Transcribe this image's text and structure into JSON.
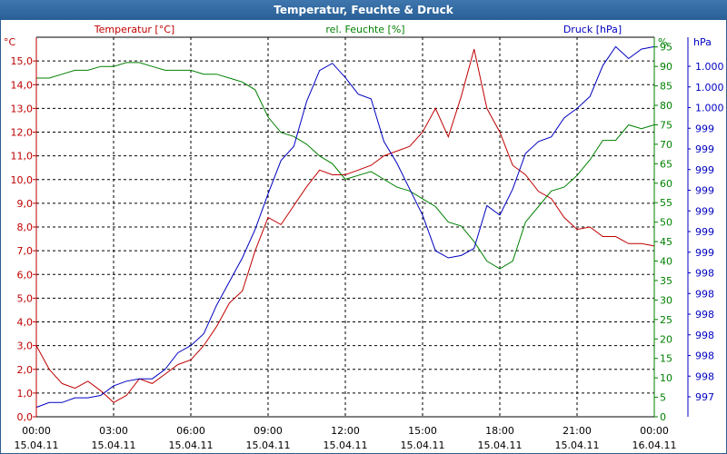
{
  "window": {
    "title": "Temperatur, Feuchte & Druck"
  },
  "chart_data": {
    "type": "line",
    "title": "Temperatur, Feuchte & Druck",
    "colors": {
      "temperature": "#c00000",
      "humidity": "#008000",
      "pressure": "#0000c0",
      "grid": "#000000"
    },
    "x_ticks": [
      {
        "time": "00:00",
        "date": "15.04.11"
      },
      {
        "time": "03:00",
        "date": "15.04.11"
      },
      {
        "time": "06:00",
        "date": "15.04.11"
      },
      {
        "time": "09:00",
        "date": "15.04.11"
      },
      {
        "time": "12:00",
        "date": "15.04.11"
      },
      {
        "time": "15:00",
        "date": "15.04.11"
      },
      {
        "time": "18:00",
        "date": "15.04.11"
      },
      {
        "time": "21:00",
        "date": "15.04.11"
      },
      {
        "time": "00:00",
        "date": "16.04.11"
      }
    ],
    "xlim": [
      0,
      24
    ],
    "axes": {
      "temperature": {
        "label": "Temperatur [°C]",
        "unit": "°C",
        "ylim": [
          0,
          16
        ],
        "ticks": [
          "0,0",
          "1,0",
          "2,0",
          "3,0",
          "4,0",
          "5,0",
          "6,0",
          "7,0",
          "8,0",
          "9,0",
          "10,0",
          "11,0",
          "12,0",
          "13,0",
          "14,0",
          "15,0"
        ]
      },
      "humidity": {
        "label": "rel. Feuchte [%]",
        "unit": "%",
        "ylim": [
          0,
          97.5
        ],
        "ticks": [
          "0",
          "5",
          "10",
          "15",
          "20",
          "25",
          "30",
          "35",
          "40",
          "45",
          "50",
          "55",
          "60",
          "65",
          "70",
          "75",
          "80",
          "85",
          "90",
          "95"
        ]
      },
      "pressure": {
        "label": "Druck [hPa]",
        "unit": "hPa",
        "ticks": [
          "997",
          "998",
          "998",
          "998",
          "998",
          "998",
          "998",
          "999",
          "999",
          "999",
          "999",
          "999",
          "999",
          "999",
          "1.000",
          "1.000",
          "1.000"
        ]
      }
    },
    "series": [
      {
        "name": "Temperatur",
        "key": "temperature",
        "x": [
          0,
          0.5,
          1,
          1.5,
          2,
          2.5,
          3,
          3.5,
          4,
          4.5,
          5,
          5.5,
          6,
          6.5,
          7,
          7.5,
          8,
          8.5,
          9,
          9.5,
          10,
          10.5,
          11,
          11.5,
          12,
          12.5,
          13,
          13.5,
          14,
          14.5,
          15,
          15.5,
          16,
          16.5,
          17,
          17.5,
          18,
          18.5,
          19,
          19.5,
          20,
          20.5,
          21,
          21.5,
          22,
          22.5,
          23,
          23.5,
          24
        ],
        "values": [
          3.0,
          2.0,
          1.4,
          1.2,
          1.5,
          1.1,
          0.6,
          0.9,
          1.6,
          1.4,
          1.8,
          2.2,
          2.4,
          3.0,
          3.8,
          4.8,
          5.3,
          7.0,
          8.4,
          8.1,
          8.9,
          9.7,
          10.4,
          10.2,
          10.2,
          10.4,
          10.6,
          11.0,
          11.2,
          11.4,
          12.0,
          13.0,
          11.8,
          13.5,
          15.5,
          13.0,
          12.0,
          10.6,
          10.2,
          9.5,
          9.2,
          8.4,
          7.9,
          8.0,
          7.6,
          7.6,
          7.3,
          7.3,
          7.2
        ]
      },
      {
        "name": "rel. Feuchte",
        "key": "humidity",
        "x": [
          0,
          0.5,
          1,
          1.5,
          2,
          2.5,
          3,
          3.5,
          4,
          4.5,
          5,
          5.5,
          6,
          6.5,
          7,
          7.5,
          8,
          8.5,
          9,
          9.5,
          10,
          10.5,
          11,
          11.5,
          12,
          12.5,
          13,
          13.5,
          14,
          14.5,
          15,
          15.5,
          16,
          16.5,
          17,
          17.5,
          18,
          18.5,
          19,
          19.5,
          20,
          20.5,
          21,
          21.5,
          22,
          22.5,
          23,
          23.5,
          24
        ],
        "values": [
          87,
          87,
          88,
          89,
          89,
          90,
          90,
          91,
          91,
          90,
          89,
          89,
          89,
          88,
          88,
          87,
          86,
          84,
          77,
          73,
          72,
          70,
          67,
          65,
          61,
          62,
          63,
          61,
          59,
          58,
          56,
          54,
          50,
          49,
          45,
          40,
          38,
          40,
          50,
          54,
          58,
          59,
          62,
          66,
          71,
          71,
          75,
          74,
          75
        ]
      },
      {
        "name": "Druck",
        "key": "pressure",
        "x": [
          0,
          0.5,
          1,
          1.5,
          2,
          2.5,
          3,
          3.5,
          4,
          4.5,
          5,
          5.5,
          6,
          6.5,
          7,
          7.5,
          8,
          8.5,
          9,
          9.5,
          10,
          10.5,
          11,
          11.5,
          12,
          12.5,
          13,
          13.5,
          14,
          14.5,
          15,
          15.5,
          16,
          16.5,
          17,
          17.5,
          18,
          18.5,
          19,
          19.5,
          20,
          20.5,
          21,
          21.5,
          22,
          22.5,
          23,
          23.5,
          24
        ],
        "values": [
          0.4,
          0.6,
          0.6,
          0.8,
          0.8,
          0.9,
          1.3,
          1.5,
          1.6,
          1.6,
          2.0,
          2.7,
          3.0,
          3.5,
          4.7,
          5.7,
          6.7,
          7.9,
          9.4,
          10.8,
          11.4,
          13.3,
          14.6,
          14.9,
          14.3,
          13.6,
          13.4,
          11.6,
          10.7,
          9.6,
          8.5,
          7.0,
          6.7,
          6.8,
          7.1,
          8.9,
          8.5,
          9.6,
          11.1,
          11.6,
          11.8,
          12.6,
          13.0,
          13.5,
          14.8,
          15.6,
          15.1,
          15.5,
          15.6
        ]
      }
    ]
  }
}
